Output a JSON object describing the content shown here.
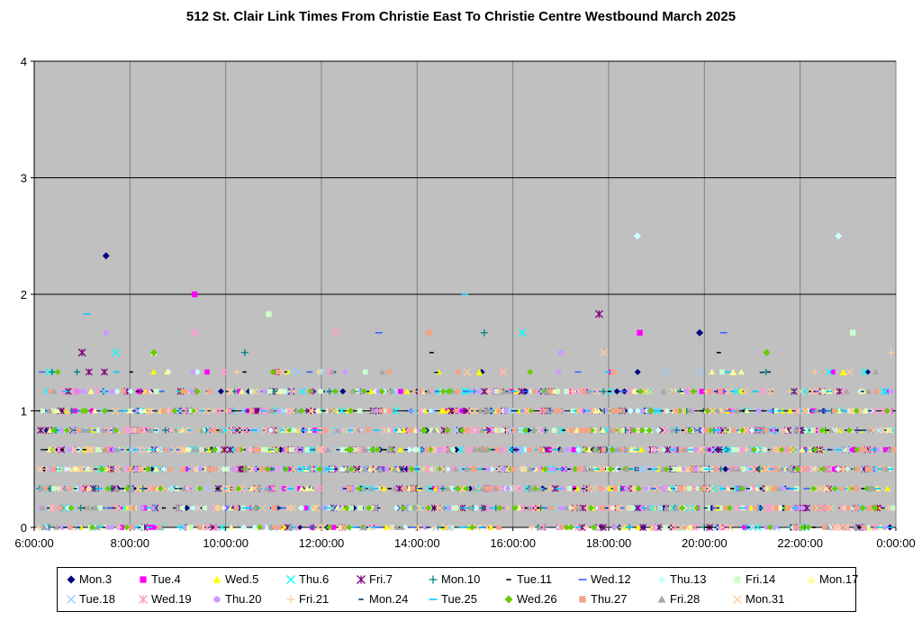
{
  "chart_data": {
    "type": "scatter",
    "title": "512 St. Clair Link Times From Christie East To Christie Centre Westbound March 2025",
    "xlabel": "",
    "ylabel": "",
    "x_ticks": [
      "6:00:00",
      "8:00:00",
      "10:00:00",
      "12:00:00",
      "14:00:00",
      "16:00:00",
      "18:00:00",
      "20:00:00",
      "22:00:00",
      "0:00:00"
    ],
    "y_ticks": [
      "0",
      "1",
      "2",
      "3",
      "4"
    ],
    "xlim_hours": [
      6,
      24
    ],
    "ylim": [
      0,
      4
    ],
    "grid": true,
    "plot_background": "#c0c0c0",
    "legend_position": "bottom",
    "series": [
      {
        "name": "Mon.3",
        "color": "#000080",
        "marker": "diamond",
        "outliers": [
          [
            7.5,
            2.33
          ],
          [
            19.9,
            1.67
          ]
        ]
      },
      {
        "name": "Tue.4",
        "color": "#ff00ff",
        "marker": "square",
        "outliers": [
          [
            9.35,
            2.0
          ],
          [
            18.65,
            1.67
          ]
        ]
      },
      {
        "name": "Wed.5",
        "color": "#ffff00",
        "marker": "triangle",
        "outliers": [
          [
            15.3,
            1.33
          ],
          [
            22.9,
            1.33
          ]
        ]
      },
      {
        "name": "Thu.6",
        "color": "#00ffff",
        "marker": "x",
        "outliers": [
          [
            7.7,
            1.5
          ],
          [
            16.2,
            1.67
          ]
        ]
      },
      {
        "name": "Fri.7",
        "color": "#800080",
        "marker": "star",
        "outliers": [
          [
            17.8,
            1.83
          ],
          [
            7.0,
            1.5
          ]
        ]
      },
      {
        "name": "Mon.10",
        "color": "#008080",
        "marker": "plus",
        "outliers": [
          [
            15.4,
            1.67
          ],
          [
            10.4,
            1.5
          ]
        ]
      },
      {
        "name": "Tue.11",
        "color": "#000000",
        "marker": "dash",
        "outliers": [
          [
            14.3,
            1.5
          ],
          [
            20.3,
            1.5
          ]
        ]
      },
      {
        "name": "Wed.12",
        "color": "#3366ff",
        "marker": "hline",
        "outliers": [
          [
            13.2,
            1.67
          ],
          [
            20.4,
            1.67
          ]
        ]
      },
      {
        "name": "Thu.13",
        "color": "#ccffff",
        "marker": "diamond",
        "outliers": [
          [
            18.6,
            2.5
          ],
          [
            22.8,
            2.5
          ]
        ]
      },
      {
        "name": "Fri.14",
        "color": "#ccffcc",
        "marker": "square",
        "outliers": [
          [
            10.9,
            1.83
          ],
          [
            23.1,
            1.67
          ]
        ]
      },
      {
        "name": "Mon.17",
        "color": "#ffff99",
        "marker": "triangle",
        "outliers": [
          [
            8.5,
            1.5
          ],
          [
            20.6,
            1.33
          ]
        ]
      },
      {
        "name": "Tue.18",
        "color": "#99ccff",
        "marker": "x",
        "outliers": [
          [
            12.0,
            1.33
          ],
          [
            19.2,
            1.33
          ]
        ]
      },
      {
        "name": "Wed.19",
        "color": "#ff99cc",
        "marker": "star",
        "outliers": [
          [
            9.35,
            1.67
          ],
          [
            12.3,
            1.67
          ]
        ]
      },
      {
        "name": "Thu.20",
        "color": "#cc99ff",
        "marker": "circle",
        "outliers": [
          [
            7.5,
            1.67
          ],
          [
            17.0,
            1.5
          ]
        ]
      },
      {
        "name": "Fri.21",
        "color": "#ffcc99",
        "marker": "plus",
        "outliers": [
          [
            11.0,
            1.33
          ],
          [
            23.9,
            1.5
          ]
        ]
      },
      {
        "name": "Mon.24",
        "color": "#003366",
        "marker": "dash",
        "outliers": [
          [
            14.4,
            1.33
          ],
          [
            21.2,
            1.33
          ]
        ]
      },
      {
        "name": "Tue.25",
        "color": "#00ccff",
        "marker": "hline",
        "outliers": [
          [
            15.0,
            2.0
          ],
          [
            7.1,
            1.83
          ]
        ]
      },
      {
        "name": "Wed.26",
        "color": "#66cc00",
        "marker": "diamond",
        "outliers": [
          [
            8.5,
            1.5
          ],
          [
            21.3,
            1.5
          ]
        ]
      },
      {
        "name": "Thu.27",
        "color": "#f4a28a",
        "marker": "square",
        "outliers": [
          [
            14.25,
            1.67
          ],
          [
            18.1,
            1.33
          ]
        ]
      },
      {
        "name": "Fri.28",
        "color": "#a6a6a6",
        "marker": "triangle",
        "outliers": []
      },
      {
        "name": "Mon.31",
        "color": "#ffcc99",
        "marker": "x",
        "outliers": [
          [
            17.9,
            1.5
          ],
          [
            15.05,
            1.33
          ]
        ]
      }
    ]
  }
}
